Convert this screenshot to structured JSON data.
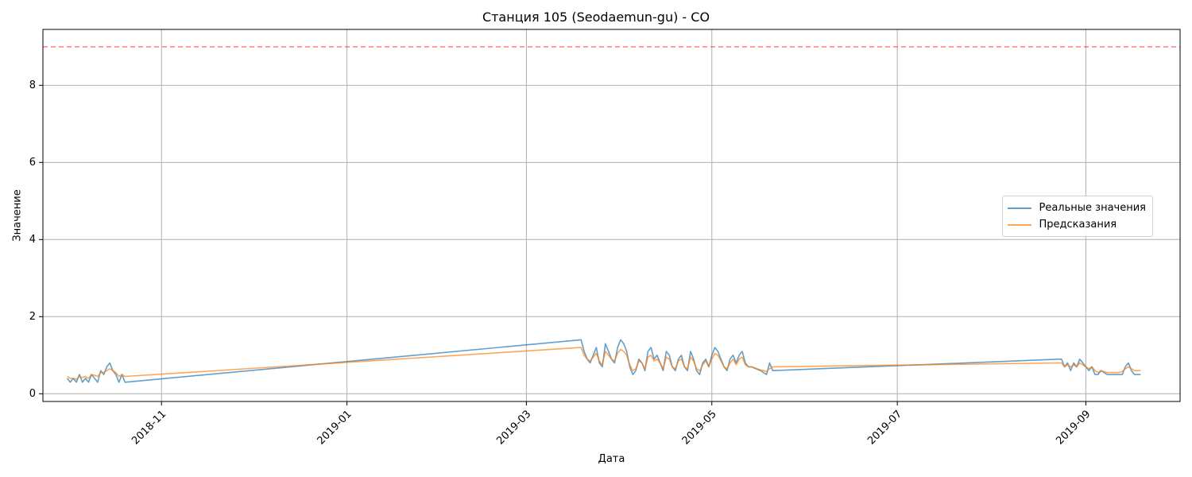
{
  "chart_data": {
    "type": "line",
    "title": "Станция 105 (Seodaemun-gu) - CO",
    "xlabel": "Дата",
    "ylabel": "Значение",
    "x_type": "date",
    "xlim": [
      "2018-09-23",
      "2019-10-02"
    ],
    "ylim": [
      -0.2,
      9.45
    ],
    "x_ticks": [
      "2018-11",
      "2019-01",
      "2019-03",
      "2019-05",
      "2019-07",
      "2019-09"
    ],
    "y_ticks": [
      0,
      2,
      4,
      6,
      8
    ],
    "grid": true,
    "legend_position": "center-right",
    "threshold": {
      "value": 9,
      "color": "#ff0000",
      "style": "dashed"
    },
    "series": [
      {
        "name": "Реальные значения",
        "color": "#1f77b4",
        "points": [
          [
            "2018-10-01",
            0.4
          ],
          [
            "2018-10-02",
            0.3
          ],
          [
            "2018-10-03",
            0.4
          ],
          [
            "2018-10-04",
            0.3
          ],
          [
            "2018-10-05",
            0.5
          ],
          [
            "2018-10-06",
            0.3
          ],
          [
            "2018-10-07",
            0.4
          ],
          [
            "2018-10-08",
            0.3
          ],
          [
            "2018-10-09",
            0.5
          ],
          [
            "2018-10-10",
            0.4
          ],
          [
            "2018-10-11",
            0.3
          ],
          [
            "2018-10-12",
            0.6
          ],
          [
            "2018-10-13",
            0.5
          ],
          [
            "2018-10-14",
            0.7
          ],
          [
            "2018-10-15",
            0.8
          ],
          [
            "2018-10-16",
            0.6
          ],
          [
            "2018-10-17",
            0.5
          ],
          [
            "2018-10-18",
            0.3
          ],
          [
            "2018-10-19",
            0.5
          ],
          [
            "2018-10-20",
            0.3
          ],
          [
            "2019-03-19",
            1.4
          ],
          [
            "2019-03-20",
            1.1
          ],
          [
            "2019-03-21",
            0.9
          ],
          [
            "2019-03-22",
            0.8
          ],
          [
            "2019-03-23",
            1.0
          ],
          [
            "2019-03-24",
            1.2
          ],
          [
            "2019-03-25",
            0.8
          ],
          [
            "2019-03-26",
            0.7
          ],
          [
            "2019-03-27",
            1.3
          ],
          [
            "2019-03-28",
            1.1
          ],
          [
            "2019-03-29",
            0.9
          ],
          [
            "2019-03-30",
            0.8
          ],
          [
            "2019-03-31",
            1.2
          ],
          [
            "2019-04-01",
            1.4
          ],
          [
            "2019-04-02",
            1.3
          ],
          [
            "2019-04-03",
            1.1
          ],
          [
            "2019-04-04",
            0.7
          ],
          [
            "2019-04-05",
            0.5
          ],
          [
            "2019-04-06",
            0.6
          ],
          [
            "2019-04-07",
            0.9
          ],
          [
            "2019-04-08",
            0.8
          ],
          [
            "2019-04-09",
            0.6
          ],
          [
            "2019-04-10",
            1.1
          ],
          [
            "2019-04-11",
            1.2
          ],
          [
            "2019-04-12",
            0.9
          ],
          [
            "2019-04-13",
            1.0
          ],
          [
            "2019-04-14",
            0.8
          ],
          [
            "2019-04-15",
            0.6
          ],
          [
            "2019-04-16",
            1.1
          ],
          [
            "2019-04-17",
            1.0
          ],
          [
            "2019-04-18",
            0.7
          ],
          [
            "2019-04-19",
            0.6
          ],
          [
            "2019-04-20",
            0.9
          ],
          [
            "2019-04-21",
            1.0
          ],
          [
            "2019-04-22",
            0.7
          ],
          [
            "2019-04-23",
            0.6
          ],
          [
            "2019-04-24",
            1.1
          ],
          [
            "2019-04-25",
            0.9
          ],
          [
            "2019-04-26",
            0.6
          ],
          [
            "2019-04-27",
            0.5
          ],
          [
            "2019-04-28",
            0.8
          ],
          [
            "2019-04-29",
            0.9
          ],
          [
            "2019-04-30",
            0.7
          ],
          [
            "2019-05-01",
            1.0
          ],
          [
            "2019-05-02",
            1.2
          ],
          [
            "2019-05-03",
            1.1
          ],
          [
            "2019-05-04",
            0.9
          ],
          [
            "2019-05-05",
            0.7
          ],
          [
            "2019-05-06",
            0.6
          ],
          [
            "2019-05-07",
            0.9
          ],
          [
            "2019-05-08",
            1.0
          ],
          [
            "2019-05-09",
            0.8
          ],
          [
            "2019-05-10",
            1.0
          ],
          [
            "2019-05-11",
            1.1
          ],
          [
            "2019-05-12",
            0.8
          ],
          [
            "2019-05-13",
            0.7
          ],
          [
            "2019-05-14",
            0.7
          ],
          [
            "2019-05-17",
            0.6
          ],
          [
            "2019-05-19",
            0.5
          ],
          [
            "2019-05-20",
            0.8
          ],
          [
            "2019-05-21",
            0.6
          ],
          [
            "2019-08-24",
            0.9
          ],
          [
            "2019-08-25",
            0.7
          ],
          [
            "2019-08-26",
            0.8
          ],
          [
            "2019-08-27",
            0.6
          ],
          [
            "2019-08-28",
            0.8
          ],
          [
            "2019-08-29",
            0.7
          ],
          [
            "2019-08-30",
            0.9
          ],
          [
            "2019-08-31",
            0.8
          ],
          [
            "2019-09-01",
            0.7
          ],
          [
            "2019-09-02",
            0.6
          ],
          [
            "2019-09-03",
            0.7
          ],
          [
            "2019-09-04",
            0.5
          ],
          [
            "2019-09-05",
            0.5
          ],
          [
            "2019-09-06",
            0.6
          ],
          [
            "2019-09-08",
            0.5
          ],
          [
            "2019-09-12",
            0.5
          ],
          [
            "2019-09-13",
            0.5
          ],
          [
            "2019-09-14",
            0.7
          ],
          [
            "2019-09-15",
            0.8
          ],
          [
            "2019-09-16",
            0.6
          ],
          [
            "2019-09-17",
            0.5
          ],
          [
            "2019-09-19",
            0.5
          ]
        ]
      },
      {
        "name": "Предсказания",
        "color": "#ff7f0e",
        "points": [
          [
            "2018-10-01",
            0.45
          ],
          [
            "2018-10-02",
            0.4
          ],
          [
            "2018-10-03",
            0.4
          ],
          [
            "2018-10-04",
            0.38
          ],
          [
            "2018-10-05",
            0.45
          ],
          [
            "2018-10-06",
            0.42
          ],
          [
            "2018-10-07",
            0.45
          ],
          [
            "2018-10-08",
            0.4
          ],
          [
            "2018-10-09",
            0.5
          ],
          [
            "2018-10-10",
            0.48
          ],
          [
            "2018-10-11",
            0.45
          ],
          [
            "2018-10-12",
            0.55
          ],
          [
            "2018-10-13",
            0.55
          ],
          [
            "2018-10-14",
            0.6
          ],
          [
            "2018-10-15",
            0.65
          ],
          [
            "2018-10-16",
            0.6
          ],
          [
            "2018-10-17",
            0.55
          ],
          [
            "2018-10-18",
            0.45
          ],
          [
            "2018-10-19",
            0.5
          ],
          [
            "2018-10-20",
            0.45
          ],
          [
            "2019-03-19",
            1.2
          ],
          [
            "2019-03-20",
            1.0
          ],
          [
            "2019-03-21",
            0.9
          ],
          [
            "2019-03-22",
            0.85
          ],
          [
            "2019-03-23",
            0.95
          ],
          [
            "2019-03-24",
            1.05
          ],
          [
            "2019-03-25",
            0.85
          ],
          [
            "2019-03-26",
            0.75
          ],
          [
            "2019-03-27",
            1.1
          ],
          [
            "2019-03-28",
            1.0
          ],
          [
            "2019-03-29",
            0.9
          ],
          [
            "2019-03-30",
            0.85
          ],
          [
            "2019-03-31",
            1.05
          ],
          [
            "2019-04-01",
            1.15
          ],
          [
            "2019-04-02",
            1.1
          ],
          [
            "2019-04-03",
            1.0
          ],
          [
            "2019-04-04",
            0.75
          ],
          [
            "2019-04-05",
            0.6
          ],
          [
            "2019-04-06",
            0.65
          ],
          [
            "2019-04-07",
            0.85
          ],
          [
            "2019-04-08",
            0.8
          ],
          [
            "2019-04-09",
            0.65
          ],
          [
            "2019-04-10",
            0.95
          ],
          [
            "2019-04-11",
            1.0
          ],
          [
            "2019-04-12",
            0.85
          ],
          [
            "2019-04-13",
            0.9
          ],
          [
            "2019-04-14",
            0.8
          ],
          [
            "2019-04-15",
            0.65
          ],
          [
            "2019-04-16",
            0.95
          ],
          [
            "2019-04-17",
            0.9
          ],
          [
            "2019-04-18",
            0.7
          ],
          [
            "2019-04-19",
            0.65
          ],
          [
            "2019-04-20",
            0.85
          ],
          [
            "2019-04-21",
            0.9
          ],
          [
            "2019-04-22",
            0.7
          ],
          [
            "2019-04-23",
            0.65
          ],
          [
            "2019-04-24",
            0.95
          ],
          [
            "2019-04-25",
            0.85
          ],
          [
            "2019-04-26",
            0.65
          ],
          [
            "2019-04-27",
            0.6
          ],
          [
            "2019-04-28",
            0.75
          ],
          [
            "2019-04-29",
            0.85
          ],
          [
            "2019-04-30",
            0.7
          ],
          [
            "2019-05-01",
            0.9
          ],
          [
            "2019-05-02",
            1.05
          ],
          [
            "2019-05-03",
            1.0
          ],
          [
            "2019-05-04",
            0.85
          ],
          [
            "2019-05-05",
            0.7
          ],
          [
            "2019-05-06",
            0.65
          ],
          [
            "2019-05-07",
            0.8
          ],
          [
            "2019-05-08",
            0.9
          ],
          [
            "2019-05-09",
            0.75
          ],
          [
            "2019-05-10",
            0.9
          ],
          [
            "2019-05-11",
            0.95
          ],
          [
            "2019-05-12",
            0.75
          ],
          [
            "2019-05-13",
            0.7
          ],
          [
            "2019-05-14",
            0.7
          ],
          [
            "2019-05-17",
            0.62
          ],
          [
            "2019-05-19",
            0.58
          ],
          [
            "2019-05-20",
            0.65
          ],
          [
            "2019-05-21",
            0.7
          ],
          [
            "2019-08-24",
            0.8
          ],
          [
            "2019-08-25",
            0.7
          ],
          [
            "2019-08-26",
            0.75
          ],
          [
            "2019-08-27",
            0.7
          ],
          [
            "2019-08-28",
            0.75
          ],
          [
            "2019-08-29",
            0.7
          ],
          [
            "2019-08-30",
            0.8
          ],
          [
            "2019-08-31",
            0.75
          ],
          [
            "2019-09-01",
            0.7
          ],
          [
            "2019-09-02",
            0.65
          ],
          [
            "2019-09-03",
            0.7
          ],
          [
            "2019-09-04",
            0.6
          ],
          [
            "2019-09-05",
            0.55
          ],
          [
            "2019-09-06",
            0.6
          ],
          [
            "2019-09-08",
            0.55
          ],
          [
            "2019-09-12",
            0.55
          ],
          [
            "2019-09-13",
            0.58
          ],
          [
            "2019-09-14",
            0.65
          ],
          [
            "2019-09-15",
            0.7
          ],
          [
            "2019-09-16",
            0.65
          ],
          [
            "2019-09-17",
            0.6
          ],
          [
            "2019-09-19",
            0.6
          ]
        ]
      }
    ]
  }
}
